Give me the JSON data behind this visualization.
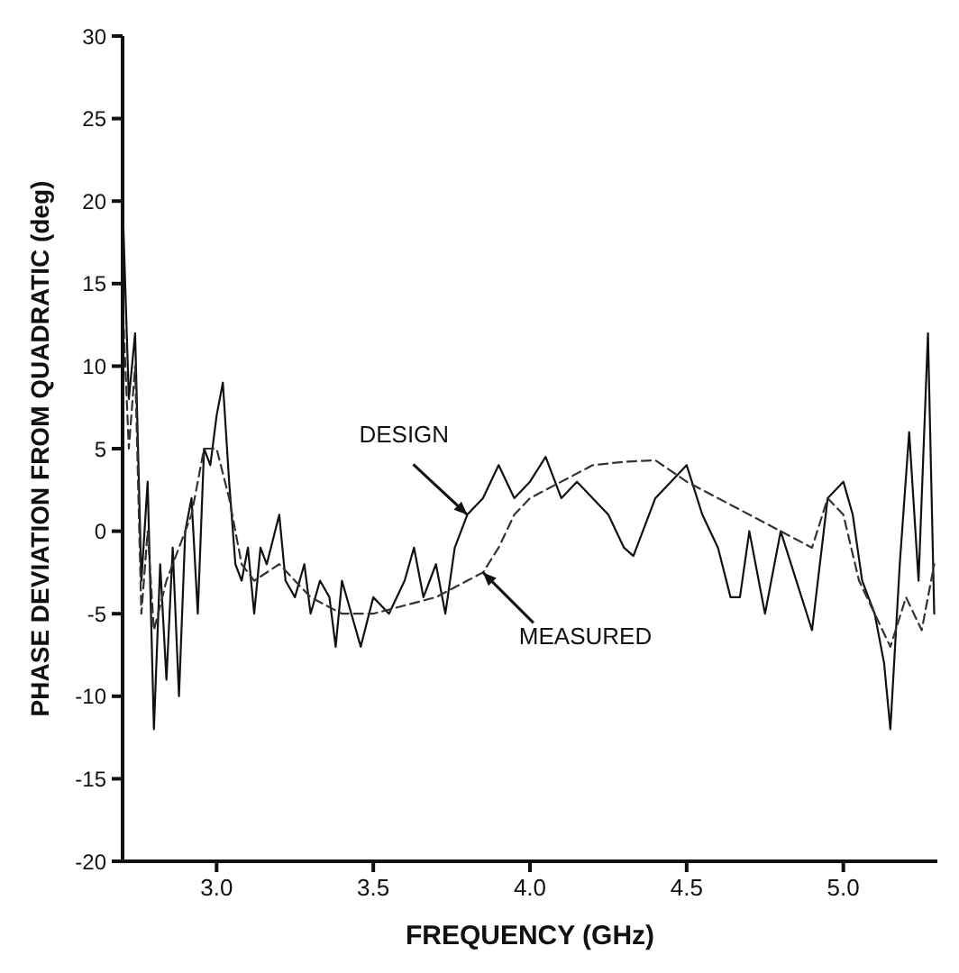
{
  "chart_data": {
    "type": "line",
    "xlabel": "FREQUENCY (GHz)",
    "ylabel": "PHASE DEVIATION FROM QUADRATIC (deg)",
    "xlim": [
      2.7,
      5.3
    ],
    "ylim": [
      -20,
      30
    ],
    "xticks": [
      {
        "value": 3,
        "label": "3.0"
      },
      {
        "value": 3.5,
        "label": "3.5"
      },
      {
        "value": 4,
        "label": "4.0"
      },
      {
        "value": 4.5,
        "label": "4.5"
      },
      {
        "value": 5,
        "label": "5.0"
      }
    ],
    "yticks": [
      -20,
      -15,
      -10,
      -5,
      0,
      5,
      10,
      15,
      20,
      25,
      30
    ],
    "grid": false,
    "legend": false,
    "marker": "none",
    "annotations": [
      {
        "text": "DESIGN",
        "x": 3.8,
        "y": 1
      },
      {
        "text": "MEASURED",
        "x": 3.85,
        "y": -2.5
      }
    ],
    "series": [
      {
        "color": "#111111",
        "line_style": "solid",
        "x": [
          2.7,
          2.72,
          2.74,
          2.76,
          2.78,
          2.8,
          2.82,
          2.84,
          2.86,
          2.88,
          2.9,
          2.92,
          2.94,
          2.96,
          2.98,
          3.0,
          3.02,
          3.04,
          3.06,
          3.08,
          3.1,
          3.12,
          3.14,
          3.16,
          3.2,
          3.22,
          3.25,
          3.28,
          3.3,
          3.33,
          3.36,
          3.38,
          3.4,
          3.43,
          3.46,
          3.5,
          3.55,
          3.6,
          3.63,
          3.66,
          3.7,
          3.73,
          3.76,
          3.8,
          3.85,
          3.9,
          3.95,
          4.0,
          4.05,
          4.1,
          4.15,
          4.2,
          4.25,
          4.3,
          4.33,
          4.36,
          4.4,
          4.45,
          4.5,
          4.55,
          4.6,
          4.64,
          4.67,
          4.7,
          4.75,
          4.8,
          4.85,
          4.9,
          4.95,
          5.0,
          5.03,
          5.06,
          5.1,
          5.13,
          5.15,
          5.18,
          5.21,
          5.24,
          5.27,
          5.29
        ],
        "values": [
          20,
          8,
          12,
          -3,
          3,
          -12,
          -2,
          -9,
          -1,
          -10,
          0,
          2,
          -5,
          5,
          4,
          7,
          9,
          3,
          -2,
          -3,
          -1,
          -5,
          -1,
          -2,
          1,
          -3,
          -4,
          -2,
          -5,
          -3,
          -4,
          -7,
          -3,
          -5,
          -7,
          -4,
          -5,
          -3,
          -1,
          -4,
          -2,
          -5,
          -1,
          1,
          2,
          4,
          2,
          3,
          4.5,
          2,
          3,
          2,
          1,
          -1,
          -1.5,
          0,
          2,
          3,
          4,
          1,
          -1,
          -4,
          -4,
          0,
          -5,
          0,
          -3,
          -6,
          2,
          3,
          1,
          -3,
          -5,
          -8,
          -12,
          -2,
          6,
          -3,
          12,
          -5
        ]
      },
      {
        "color": "#333333",
        "line_style": "dashed",
        "x": [
          2.7,
          2.72,
          2.74,
          2.76,
          2.78,
          2.8,
          2.84,
          2.88,
          2.92,
          2.96,
          3.0,
          3.04,
          3.08,
          3.12,
          3.2,
          3.3,
          3.4,
          3.5,
          3.6,
          3.7,
          3.8,
          3.85,
          3.9,
          3.95,
          4.0,
          4.1,
          4.2,
          4.3,
          4.4,
          4.5,
          4.6,
          4.7,
          4.8,
          4.9,
          4.95,
          5.0,
          5.05,
          5.1,
          5.15,
          5.2,
          5.25,
          5.29
        ],
        "values": [
          14,
          5,
          10,
          -5,
          0,
          -6,
          -3,
          -1,
          1,
          5,
          5,
          2,
          -2,
          -3,
          -2,
          -4,
          -5,
          -5,
          -4.5,
          -4,
          -3,
          -2.5,
          -1,
          1,
          2,
          3,
          4,
          4.2,
          4.3,
          3,
          2,
          1,
          0,
          -1,
          2,
          1,
          -3,
          -5,
          -7,
          -4,
          -6,
          -2
        ]
      }
    ]
  }
}
